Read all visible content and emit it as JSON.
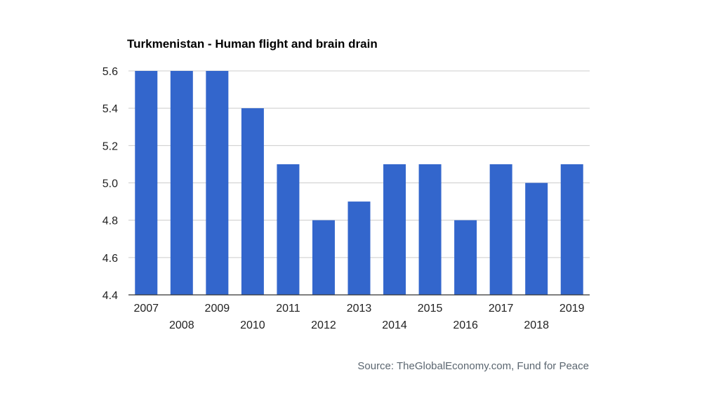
{
  "title": "Turkmenistan - Human flight and brain drain",
  "source": "Source: TheGlobalEconomy.com, Fund for Peace",
  "colors": {
    "bar": "#3366cc",
    "grid": "#cccccc",
    "axis": "#333333"
  },
  "chart_data": {
    "type": "bar",
    "title": "Turkmenistan - Human flight and brain drain",
    "xlabel": "",
    "ylabel": "",
    "categories": [
      "2007",
      "2008",
      "2009",
      "2010",
      "2011",
      "2012",
      "2013",
      "2014",
      "2015",
      "2016",
      "2017",
      "2018",
      "2019"
    ],
    "values": [
      5.6,
      5.6,
      5.6,
      5.4,
      5.1,
      4.8,
      4.9,
      5.1,
      5.1,
      4.8,
      5.1,
      5.0,
      5.1
    ],
    "ylim": [
      4.4,
      5.6
    ],
    "yticks": [
      "4.4",
      "4.6",
      "4.8",
      "5.0",
      "5.2",
      "5.4",
      "5.6"
    ],
    "grid": true,
    "legend": "none"
  }
}
